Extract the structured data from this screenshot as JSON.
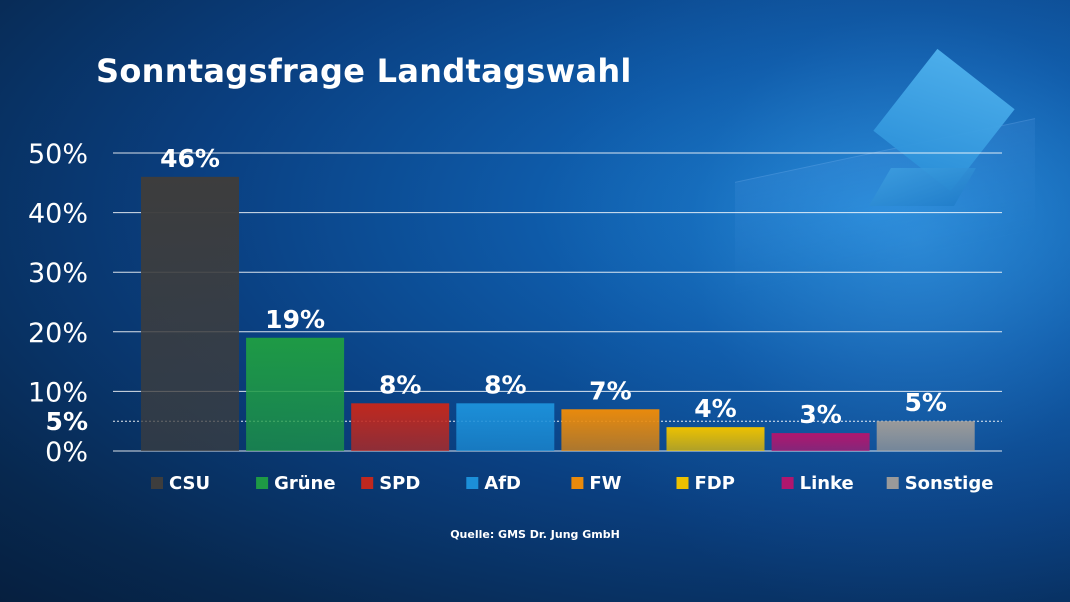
{
  "title": "Sonntagsfrage Landtagswahl",
  "source": "Quelle: GMS Dr. Jung GmbH",
  "chart_data": {
    "type": "bar",
    "title": "Sonntagsfrage Landtagswahl",
    "categories": [
      "CSU",
      "Grüne",
      "SPD",
      "AfD",
      "FW",
      "FDP",
      "Linke",
      "Sonstige"
    ],
    "values": [
      46,
      19,
      8,
      8,
      7,
      4,
      3,
      5
    ],
    "value_labels": [
      "46%",
      "19%",
      "8%",
      "8%",
      "7%",
      "4%",
      "3%",
      "5%"
    ],
    "colors": [
      "#3d3d3d",
      "#1e9a45",
      "#c0281e",
      "#1c8fd8",
      "#e98a0c",
      "#ecc100",
      "#b0166e",
      "#9a9a9a"
    ],
    "ylim": [
      0,
      50
    ],
    "yticks": [
      0,
      10,
      20,
      30,
      40,
      50
    ],
    "ytick_labels": [
      "0%",
      "10%",
      "20%",
      "30%",
      "40%",
      "50%"
    ],
    "reference_line": {
      "value": 5,
      "label": "5%"
    },
    "grid": true,
    "legend": "bottom",
    "xlabel": "",
    "ylabel": ""
  }
}
